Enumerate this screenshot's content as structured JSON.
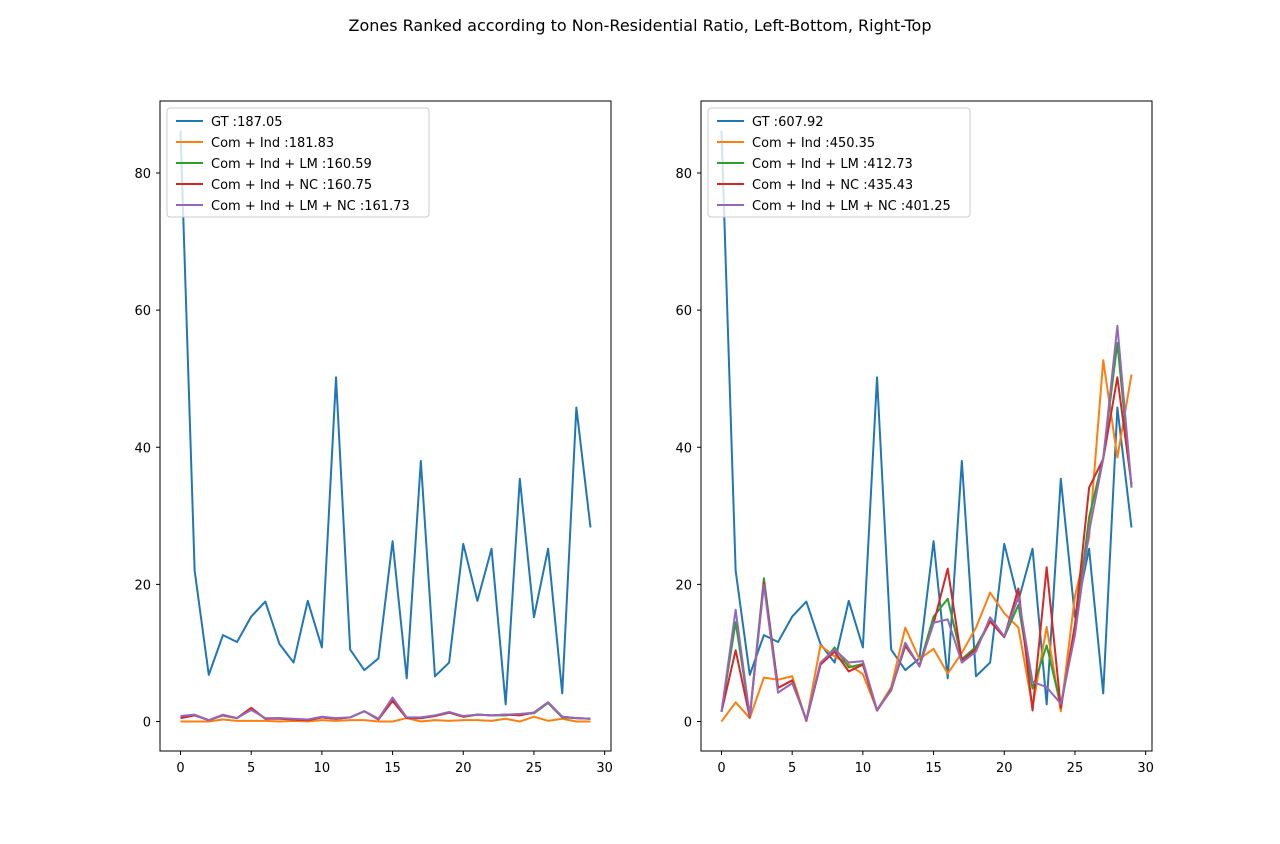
{
  "figure": {
    "title": "Zones Ranked according to Non-Residential Ratio, Left-Bottom, Right-Top"
  },
  "colors": {
    "GT": "#1f77b4",
    "Com + Ind": "#ff7f0e",
    "Com + Ind + LM": "#2ca02c",
    "Com + Ind + NC": "#d62728",
    "Com + Ind + LM + NC": "#9467bd"
  },
  "chart_data": [
    {
      "type": "line",
      "panel": "left",
      "xlim": [
        -1.45,
        30.45
      ],
      "ylim": [
        -4.3,
        90.5
      ],
      "x_ticks": [
        0,
        5,
        10,
        15,
        20,
        25,
        30
      ],
      "y_ticks": [
        0,
        20,
        40,
        60,
        80
      ],
      "legend_position": "upper-left",
      "x": [
        0,
        1,
        2,
        3,
        4,
        5,
        6,
        7,
        8,
        9,
        10,
        11,
        12,
        13,
        14,
        15,
        16,
        17,
        18,
        19,
        20,
        21,
        22,
        23,
        24,
        25,
        26,
        27,
        28,
        29
      ],
      "series": [
        {
          "name": "GT",
          "legend_label": "GT :187.05",
          "values": [
            86.2,
            22,
            6.8,
            12.6,
            11.6,
            15.3,
            17.5,
            11.3,
            8.6,
            17.6,
            10.8,
            50.2,
            10.5,
            7.5,
            9.2,
            26.3,
            6.3,
            38,
            6.6,
            8.6,
            25.9,
            17.6,
            25.2,
            2.5,
            35.4,
            15.2,
            25.2,
            4.1,
            45.8,
            28.3
          ]
        },
        {
          "name": "Com + Ind",
          "legend_label": "Com + Ind :181.83",
          "values": [
            0,
            0,
            0,
            0.3,
            0.1,
            0.1,
            0.1,
            0,
            0.1,
            0,
            0.2,
            0.1,
            0.2,
            0.2,
            0,
            0,
            0.5,
            0,
            0.2,
            0.1,
            0.2,
            0.2,
            0.1,
            0.4,
            0,
            0.7,
            0.1,
            0.4,
            0,
            0
          ]
        },
        {
          "name": "Com + Ind + LM",
          "legend_label": "Com + Ind + LM :160.59",
          "values": [
            0.7,
            0.9,
            0.2,
            0.9,
            0.5,
            1.9,
            0.4,
            0.5,
            0.3,
            0.2,
            0.6,
            0.4,
            0.6,
            1.5,
            0.4,
            3.2,
            0.5,
            0.5,
            0.8,
            1.3,
            0.7,
            1,
            0.9,
            0.9,
            1.1,
            1.2,
            2.7,
            0.6,
            0.5,
            0.4
          ]
        },
        {
          "name": "Com + Ind + NC",
          "legend_label": "Com + Ind + NC :160.75",
          "values": [
            0.5,
            0.9,
            0.2,
            0.9,
            0.5,
            2,
            0.4,
            0.4,
            0.3,
            0.2,
            0.6,
            0.4,
            0.6,
            1.5,
            0.3,
            3,
            0.5,
            0.5,
            0.8,
            1.3,
            0.7,
            1,
            0.9,
            1,
            0.9,
            1.3,
            2.8,
            0.7,
            0.5,
            0.4
          ]
        },
        {
          "name": "Com + Ind + LM + NC",
          "legend_label": "Com + Ind + LM + NC :161.73",
          "values": [
            0.8,
            1,
            0.2,
            1,
            0.5,
            1.7,
            0.5,
            0.5,
            0.4,
            0.3,
            0.7,
            0.5,
            0.6,
            1.5,
            0.4,
            3.5,
            0.6,
            0.6,
            0.9,
            1.4,
            0.8,
            1,
            0.9,
            1,
            1.1,
            1.3,
            2.8,
            0.7,
            0.5,
            0.4
          ]
        }
      ]
    },
    {
      "type": "line",
      "panel": "right",
      "xlim": [
        -1.45,
        30.45
      ],
      "ylim": [
        -4.3,
        90.5
      ],
      "x_ticks": [
        0,
        5,
        10,
        15,
        20,
        25,
        30
      ],
      "y_ticks": [
        0,
        20,
        40,
        60,
        80
      ],
      "legend_position": "upper-left",
      "x": [
        0,
        1,
        2,
        3,
        4,
        5,
        6,
        7,
        8,
        9,
        10,
        11,
        12,
        13,
        14,
        15,
        16,
        17,
        18,
        19,
        20,
        21,
        22,
        23,
        24,
        25,
        26,
        27,
        28,
        29
      ],
      "series": [
        {
          "name": "GT",
          "legend_label": "GT :607.92",
          "values": [
            86.2,
            22,
            6.8,
            12.6,
            11.6,
            15.3,
            17.5,
            11.3,
            8.6,
            17.6,
            10.8,
            50.2,
            10.5,
            7.5,
            9.2,
            26.3,
            6.3,
            38,
            6.6,
            8.6,
            25.9,
            17.6,
            25.2,
            2.5,
            35.4,
            15.2,
            25.2,
            4.1,
            45.8,
            28.3
          ]
        },
        {
          "name": "Com + Ind",
          "legend_label": "Com + Ind :450.35",
          "values": [
            0,
            2.8,
            0.5,
            6.4,
            6.1,
            6.6,
            0.1,
            11.1,
            9.5,
            8.3,
            6.9,
            1.7,
            5,
            13.7,
            9.1,
            10.6,
            7,
            10,
            13.7,
            18.8,
            15.8,
            13.7,
            2.1,
            13.8,
            1.5,
            18.3,
            26.8,
            52.7,
            38.5,
            50.6
          ]
        },
        {
          "name": "Com + Ind + LM",
          "legend_label": "Com + Ind + LM :412.73",
          "values": [
            1.4,
            14.5,
            0.8,
            20.9,
            4.9,
            6,
            0.2,
            8.3,
            10.8,
            7.9,
            8.4,
            1.6,
            4.7,
            11,
            8.2,
            15.3,
            17.9,
            9.1,
            10.9,
            14.7,
            12.3,
            17,
            4.8,
            11.1,
            2.3,
            12.9,
            29.8,
            38.5,
            55.2,
            34.1
          ]
        },
        {
          "name": "Com + Ind + NC",
          "legend_label": "Com + Ind + NC :435.43",
          "values": [
            1.4,
            10.4,
            0.6,
            20.3,
            4.9,
            6,
            0.1,
            8.3,
            10.2,
            7.3,
            8.3,
            1.6,
            4.6,
            11.1,
            8.1,
            14.3,
            22.3,
            8.8,
            10.6,
            14.6,
            12.3,
            19.4,
            1.6,
            22.5,
            2,
            14.1,
            34.1,
            38.3,
            50.2,
            34.6
          ]
        },
        {
          "name": "Com + Ind + LM + NC",
          "legend_label": "Com + Ind + LM + NC :401.25",
          "values": [
            1.4,
            16.3,
            0.8,
            19.9,
            4.2,
            5.6,
            0.3,
            8.6,
            10.5,
            8.6,
            8.8,
            1.7,
            4.5,
            11.5,
            8,
            14.4,
            14.9,
            8.6,
            10.2,
            15.2,
            12.4,
            18.2,
            5.8,
            5,
            2.6,
            12.6,
            27.7,
            38.3,
            57.7,
            34.3
          ]
        }
      ]
    }
  ]
}
